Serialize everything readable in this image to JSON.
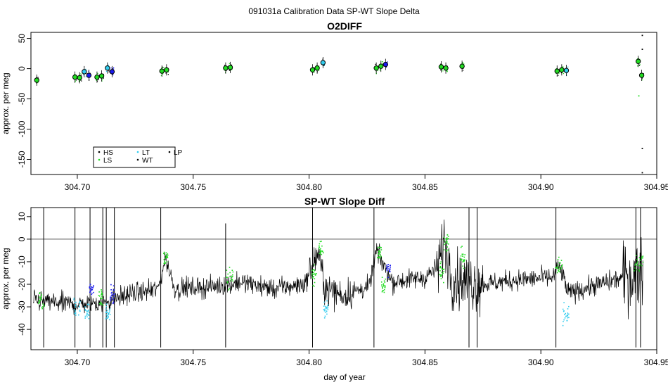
{
  "figure": {
    "title": "091031a   Calibration Data SP-WT Slope Delta"
  },
  "colors": {
    "HS": "#000000",
    "LS": "#22dd22",
    "LT": "#33ccee",
    "WT": "#000000",
    "LP": "#000000",
    "blue": "#1a1aee",
    "refline": "#555555"
  },
  "chart_data": [
    {
      "type": "scatter",
      "title": "O2DIFF",
      "xlabel": "",
      "ylabel": "approx. per meg",
      "xlim": [
        304.68,
        304.95
      ],
      "ylim": [
        -175,
        60
      ],
      "xticks": [
        304.7,
        304.75,
        304.8,
        304.85,
        304.9,
        304.95
      ],
      "xtick_labels": [
        "304.70",
        "304.75",
        "304.80",
        "304.85",
        "304.90",
        "304.95"
      ],
      "yticks": [
        50,
        0,
        -50,
        -100,
        -150
      ],
      "ytick_labels": [
        "50",
        "0",
        "-50",
        "-100",
        "-150"
      ],
      "legend": {
        "placement": "bottom-left",
        "entries": [
          {
            "label": "HS",
            "color": "#000000"
          },
          {
            "label": "LT",
            "color": "#33ccee"
          },
          {
            "label": "LP",
            "color": "#000000"
          },
          {
            "label": "LS",
            "color": "#22dd22"
          },
          {
            "label": "WT",
            "color": "#000000"
          }
        ]
      },
      "means": [
        {
          "x": 304.6825,
          "y": -19,
          "color": "#22dd22"
        },
        {
          "x": 304.699,
          "y": -14,
          "color": "#22dd22"
        },
        {
          "x": 304.701,
          "y": -15,
          "color": "#22dd22"
        },
        {
          "x": 304.703,
          "y": -5,
          "color": "#33ccee"
        },
        {
          "x": 304.705,
          "y": -11,
          "color": "#1a1aee"
        },
        {
          "x": 304.7085,
          "y": -14,
          "color": "#22dd22"
        },
        {
          "x": 304.7105,
          "y": -12,
          "color": "#22dd22"
        },
        {
          "x": 304.713,
          "y": 1,
          "color": "#33ccee"
        },
        {
          "x": 304.715,
          "y": -5,
          "color": "#1a1aee"
        },
        {
          "x": 304.7365,
          "y": -4,
          "color": "#22dd22"
        },
        {
          "x": 304.7385,
          "y": -2,
          "color": "#22dd22"
        },
        {
          "x": 304.764,
          "y": 1,
          "color": "#22dd22"
        },
        {
          "x": 304.766,
          "y": 2,
          "color": "#22dd22"
        },
        {
          "x": 304.8015,
          "y": -2,
          "color": "#22dd22"
        },
        {
          "x": 304.8035,
          "y": 1,
          "color": "#22dd22"
        },
        {
          "x": 304.806,
          "y": 10,
          "color": "#33ccee"
        },
        {
          "x": 304.829,
          "y": 1,
          "color": "#22dd22"
        },
        {
          "x": 304.831,
          "y": 4,
          "color": "#22dd22"
        },
        {
          "x": 304.833,
          "y": 7,
          "color": "#1a1aee"
        },
        {
          "x": 304.857,
          "y": 3,
          "color": "#22dd22"
        },
        {
          "x": 304.859,
          "y": 1,
          "color": "#22dd22"
        },
        {
          "x": 304.866,
          "y": 4,
          "color": "#22dd22"
        },
        {
          "x": 304.907,
          "y": -4,
          "color": "#22dd22"
        },
        {
          "x": 304.909,
          "y": -2,
          "color": "#22dd22"
        },
        {
          "x": 304.911,
          "y": -3,
          "color": "#33ccee"
        },
        {
          "x": 304.942,
          "y": 12,
          "color": "#22dd22"
        },
        {
          "x": 304.9435,
          "y": -11,
          "color": "#22dd22"
        }
      ],
      "outliers": [
        {
          "x": 304.9435,
          "y": 56,
          "color": "#000000"
        },
        {
          "x": 304.9435,
          "y": 33,
          "color": "#000000"
        },
        {
          "x": 304.942,
          "y": -44,
          "color": "#22dd22"
        },
        {
          "x": 304.9435,
          "y": -131,
          "color": "#000000"
        },
        {
          "x": 304.9435,
          "y": -171,
          "color": "#000000"
        }
      ]
    },
    {
      "type": "line",
      "title": "SP-WT Slope Diff",
      "xlabel": "day of year",
      "ylabel": "approx. per meg",
      "xlim": [
        304.68,
        304.95
      ],
      "ylim": [
        -49,
        14
      ],
      "xticks": [
        304.7,
        304.75,
        304.8,
        304.85,
        304.9,
        304.95
      ],
      "xtick_labels": [
        "304.70",
        "304.75",
        "304.80",
        "304.85",
        "304.90",
        "304.95"
      ],
      "yticks": [
        10,
        0,
        -10,
        -20,
        -30,
        -40
      ],
      "ytick_labels": [
        "10",
        "0",
        "-10",
        "-20",
        "-30",
        "-40"
      ],
      "hline": 0,
      "x_start": 304.681,
      "x_end": 304.944,
      "baseline": [
        {
          "x": 304.681,
          "y": -27
        },
        {
          "x": 304.69,
          "y": -28
        },
        {
          "x": 304.7,
          "y": -29
        },
        {
          "x": 304.712,
          "y": -28
        },
        {
          "x": 304.72,
          "y": -25
        },
        {
          "x": 304.735,
          "y": -22
        },
        {
          "x": 304.738,
          "y": -8
        },
        {
          "x": 304.742,
          "y": -22
        },
        {
          "x": 304.76,
          "y": -21
        },
        {
          "x": 304.77,
          "y": -19
        },
        {
          "x": 304.785,
          "y": -22
        },
        {
          "x": 304.798,
          "y": -20
        },
        {
          "x": 304.804,
          "y": -6
        },
        {
          "x": 304.807,
          "y": -22
        },
        {
          "x": 304.815,
          "y": -25
        },
        {
          "x": 304.826,
          "y": -21
        },
        {
          "x": 304.829,
          "y": -5
        },
        {
          "x": 304.832,
          "y": -11
        },
        {
          "x": 304.836,
          "y": -19
        },
        {
          "x": 304.85,
          "y": -17
        },
        {
          "x": 304.856,
          "y": -12
        },
        {
          "x": 304.858,
          "y": 0
        },
        {
          "x": 304.862,
          "y": -18
        },
        {
          "x": 304.875,
          "y": -20
        },
        {
          "x": 304.89,
          "y": -18
        },
        {
          "x": 304.905,
          "y": -17
        },
        {
          "x": 304.908,
          "y": -12
        },
        {
          "x": 304.912,
          "y": -24
        },
        {
          "x": 304.925,
          "y": -20
        },
        {
          "x": 304.94,
          "y": -16
        },
        {
          "x": 304.944,
          "y": -12
        }
      ],
      "segments": [
        {
          "x0": 304.683,
          "x1": 304.686,
          "color": "#22dd22",
          "y": -27
        },
        {
          "x0": 304.698,
          "x1": 304.701,
          "color": "#33ccee",
          "y": -30
        },
        {
          "x0": 304.703,
          "x1": 304.705,
          "color": "#33ccee",
          "y": -32
        },
        {
          "x0": 304.705,
          "x1": 304.707,
          "color": "#1a1aee",
          "y": -22
        },
        {
          "x0": 304.709,
          "x1": 304.711,
          "color": "#22dd22",
          "y": -26
        },
        {
          "x0": 304.712,
          "x1": 304.714,
          "color": "#33ccee",
          "y": -33
        },
        {
          "x0": 304.714,
          "x1": 304.716,
          "color": "#1a1aee",
          "y": -24
        },
        {
          "x0": 304.737,
          "x1": 304.739,
          "color": "#22dd22",
          "y": -8
        },
        {
          "x0": 304.764,
          "x1": 304.767,
          "color": "#22dd22",
          "y": -17
        },
        {
          "x0": 304.801,
          "x1": 304.803,
          "color": "#22dd22",
          "y": -16
        },
        {
          "x0": 304.804,
          "x1": 304.806,
          "color": "#22dd22",
          "y": -4
        },
        {
          "x0": 304.806,
          "x1": 304.808,
          "color": "#33ccee",
          "y": -31
        },
        {
          "x0": 304.829,
          "x1": 304.831,
          "color": "#22dd22",
          "y": -6
        },
        {
          "x0": 304.831,
          "x1": 304.833,
          "color": "#22dd22",
          "y": -20
        },
        {
          "x0": 304.833,
          "x1": 304.835,
          "color": "#1a1aee",
          "y": -12
        },
        {
          "x0": 304.856,
          "x1": 304.858,
          "color": "#22dd22",
          "y": -14
        },
        {
          "x0": 304.858,
          "x1": 304.86,
          "color": "#22dd22",
          "y": -1
        },
        {
          "x0": 304.865,
          "x1": 304.867,
          "color": "#22dd22",
          "y": -8
        },
        {
          "x0": 304.906,
          "x1": 304.909,
          "color": "#22dd22",
          "y": -12
        },
        {
          "x0": 304.909,
          "x1": 304.912,
          "color": "#33ccee",
          "y": -33
        },
        {
          "x0": 304.94,
          "x1": 304.944,
          "color": "#22dd22",
          "y": -10
        }
      ],
      "spikes": [
        {
          "x": 304.6855,
          "y0": -48,
          "y1": 14
        },
        {
          "x": 304.699,
          "y0": -48,
          "y1": 14
        },
        {
          "x": 304.7055,
          "y0": -48,
          "y1": 14
        },
        {
          "x": 304.711,
          "y0": -48,
          "y1": 14
        },
        {
          "x": 304.7125,
          "y0": -48,
          "y1": 14
        },
        {
          "x": 304.716,
          "y0": -48,
          "y1": 14
        },
        {
          "x": 304.736,
          "y0": -48,
          "y1": 14
        },
        {
          "x": 304.764,
          "y0": -48,
          "y1": 7
        },
        {
          "x": 304.8015,
          "y0": -48,
          "y1": 14
        },
        {
          "x": 304.828,
          "y0": -48,
          "y1": 14
        },
        {
          "x": 304.869,
          "y0": -48,
          "y1": 14
        },
        {
          "x": 304.8725,
          "y0": -48,
          "y1": 14
        },
        {
          "x": 304.9065,
          "y0": -48,
          "y1": 14
        },
        {
          "x": 304.941,
          "y0": -48,
          "y1": 14
        },
        {
          "x": 304.943,
          "y0": -48,
          "y1": 14
        }
      ]
    }
  ]
}
